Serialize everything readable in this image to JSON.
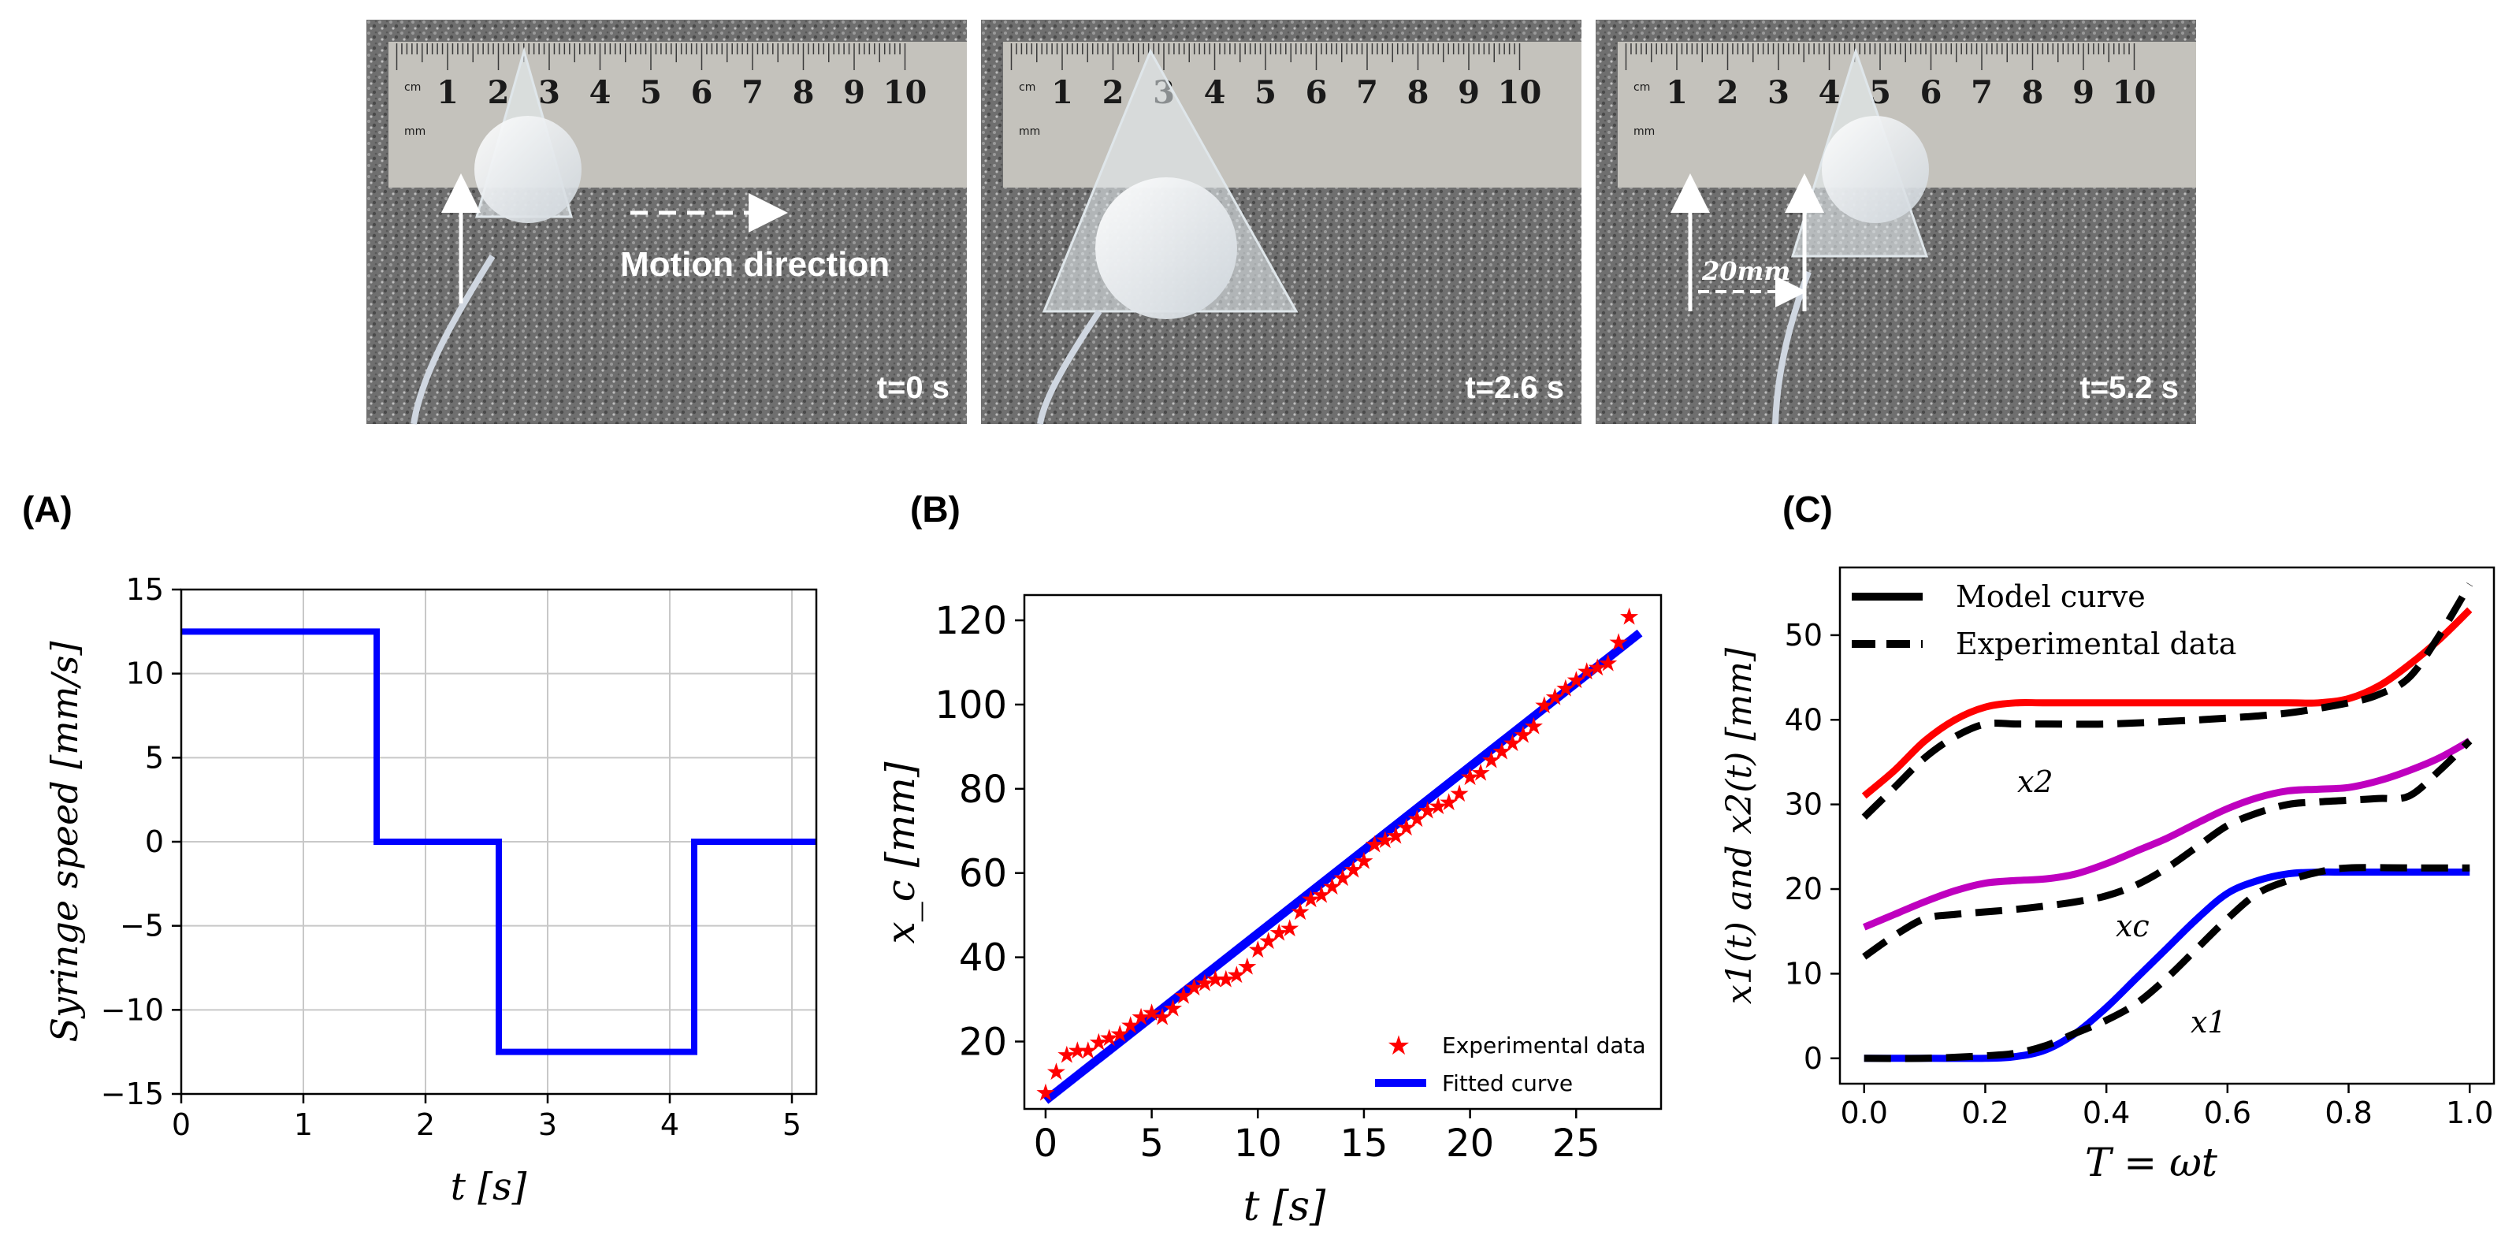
{
  "photos": [
    {
      "time_label": "t=0 s",
      "annotation": "Motion direction"
    },
    {
      "time_label": "t=2.6 s"
    },
    {
      "time_label": "t=5.2 s",
      "annotation": "20mm"
    }
  ],
  "ruler_numbers": [
    "1",
    "2",
    "3",
    "4",
    "5",
    "6",
    "7",
    "8",
    "9",
    "10"
  ],
  "ruler_unit": "cm",
  "ruler_unit2": "mm",
  "colors": {
    "blue": "#0000ff",
    "red": "#ff0000",
    "magenta": "#bf00bf",
    "black": "#000000"
  },
  "chart_data": [
    {
      "panel": "(A)",
      "type": "line",
      "title": "",
      "xlabel": "t [s]",
      "ylabel": "Syringe speed [mm/s]",
      "xlim": [
        0,
        5.2
      ],
      "ylim": [
        -15,
        15
      ],
      "xticks": [
        0,
        1,
        2,
        3,
        4,
        5
      ],
      "yticks": [
        -15,
        -10,
        -5,
        0,
        5,
        10,
        15
      ],
      "grid": true,
      "series": [
        {
          "name": "speed",
          "color": "#0000ff",
          "x": [
            0,
            1.6,
            1.6,
            2.6,
            2.6,
            4.2,
            4.2,
            5.2
          ],
          "y": [
            12.5,
            12.5,
            0,
            0,
            -12.5,
            -12.5,
            0,
            0
          ]
        }
      ]
    },
    {
      "panel": "(B)",
      "type": "scatter",
      "title": "",
      "xlabel": "t [s]",
      "ylabel": "x_c [mm]",
      "xlim": [
        -1,
        29
      ],
      "ylim": [
        4,
        126
      ],
      "xticks": [
        0,
        5,
        10,
        15,
        20,
        25
      ],
      "yticks": [
        20,
        40,
        60,
        80,
        100,
        120
      ],
      "grid": false,
      "legend": "bottom-right",
      "series": [
        {
          "name": "Experimental data",
          "color": "#ff0000",
          "marker": "star",
          "x": [
            0,
            0.5,
            1,
            1.5,
            2,
            2.5,
            3,
            3.5,
            4,
            4.5,
            5,
            5.5,
            6,
            6.5,
            7,
            7.5,
            8,
            8.5,
            9,
            9.5,
            10,
            10.5,
            11,
            11.5,
            12,
            12.5,
            13,
            13.5,
            14,
            14.5,
            15,
            15.5,
            16,
            16.5,
            17,
            17.5,
            18,
            18.5,
            19,
            19.5,
            20,
            20.5,
            21,
            21.5,
            22,
            22.5,
            23,
            23.5,
            24,
            24.5,
            25,
            25.5,
            26,
            26.5,
            27,
            27.5
          ],
          "y": [
            8,
            13,
            17,
            18,
            18,
            20,
            21,
            22,
            24,
            26,
            27,
            26,
            28,
            31,
            33,
            34,
            35,
            35,
            36,
            38,
            42,
            44,
            46,
            47,
            51,
            54,
            55,
            57,
            59,
            61,
            63,
            67,
            68,
            69,
            71,
            73,
            75,
            76,
            77,
            79,
            83,
            84,
            87,
            89,
            91,
            93,
            95,
            100,
            102,
            104,
            106,
            108,
            109,
            110,
            115,
            121
          ]
        },
        {
          "name": "Fitted curve",
          "color": "#0000ff",
          "marker": "line",
          "x": [
            0,
            28
          ],
          "y": [
            6,
            117
          ]
        }
      ]
    },
    {
      "panel": "(C)",
      "type": "line",
      "title": "",
      "xlabel": "T = ωt",
      "ylabel": "x1(t) and x2(t) [mm]",
      "xlim": [
        -0.04,
        1.04
      ],
      "ylim": [
        -3,
        58
      ],
      "xticks": [
        0.0,
        0.2,
        0.4,
        0.6,
        0.8,
        1.0
      ],
      "yticks": [
        0,
        10,
        20,
        30,
        40,
        50
      ],
      "grid": false,
      "legend": "top-left",
      "legend_entries": [
        "Model curve",
        "Experimental data"
      ],
      "curve_labels": [
        "x2",
        "xc",
        "x1"
      ],
      "series": [
        {
          "name": "x2 model",
          "color": "#ff0000",
          "style": "solid",
          "x": [
            0,
            0.05,
            0.1,
            0.15,
            0.2,
            0.25,
            0.3,
            0.4,
            0.5,
            0.6,
            0.7,
            0.75,
            0.8,
            0.85,
            0.9,
            0.95,
            1.0
          ],
          "y": [
            31,
            34,
            37.5,
            40,
            41.5,
            42,
            42,
            42,
            42,
            42,
            42,
            42,
            42.5,
            44,
            46.5,
            49.5,
            53
          ]
        },
        {
          "name": "x2 exp",
          "color": "#000000",
          "style": "dashed",
          "x": [
            0,
            0.05,
            0.1,
            0.15,
            0.2,
            0.25,
            0.3,
            0.4,
            0.5,
            0.6,
            0.7,
            0.8,
            0.85,
            0.9,
            0.95,
            1.0
          ],
          "y": [
            28.5,
            32,
            35.5,
            38,
            39.5,
            39.5,
            39.5,
            39.5,
            39.8,
            40.2,
            40.8,
            42,
            43,
            45,
            50,
            56
          ]
        },
        {
          "name": "xc model",
          "color": "#bf00bf",
          "style": "solid",
          "x": [
            0,
            0.05,
            0.1,
            0.15,
            0.2,
            0.25,
            0.3,
            0.35,
            0.4,
            0.45,
            0.5,
            0.55,
            0.6,
            0.65,
            0.7,
            0.75,
            0.8,
            0.85,
            0.9,
            0.95,
            1.0
          ],
          "y": [
            15.5,
            17,
            18.5,
            19.8,
            20.7,
            21,
            21.2,
            21.8,
            23,
            24.5,
            26,
            27.8,
            29.5,
            30.8,
            31.6,
            31.8,
            32,
            32.8,
            34,
            35.5,
            37.5
          ]
        },
        {
          "name": "xc exp",
          "color": "#000000",
          "style": "dashed",
          "x": [
            0,
            0.05,
            0.1,
            0.15,
            0.2,
            0.25,
            0.3,
            0.35,
            0.4,
            0.45,
            0.5,
            0.55,
            0.6,
            0.65,
            0.7,
            0.75,
            0.8,
            0.85,
            0.9,
            0.95,
            1.0
          ],
          "y": [
            12,
            14.5,
            16.5,
            17,
            17.3,
            17.6,
            18,
            18.5,
            19.2,
            20.5,
            22.5,
            25,
            27.5,
            29,
            30,
            30.3,
            30.5,
            30.7,
            31,
            34,
            37.5
          ]
        },
        {
          "name": "x1 model",
          "color": "#0000ff",
          "style": "solid",
          "x": [
            0,
            0.1,
            0.2,
            0.25,
            0.3,
            0.35,
            0.4,
            0.45,
            0.5,
            0.55,
            0.6,
            0.65,
            0.7,
            0.75,
            0.8,
            0.9,
            1.0
          ],
          "y": [
            0,
            0,
            0,
            0.2,
            1,
            3,
            6,
            9.5,
            13,
            16.5,
            19.5,
            21,
            21.8,
            22,
            22,
            22,
            22
          ]
        },
        {
          "name": "x1 exp",
          "color": "#000000",
          "style": "dashed",
          "x": [
            0,
            0.1,
            0.2,
            0.25,
            0.3,
            0.35,
            0.4,
            0.45,
            0.5,
            0.55,
            0.6,
            0.65,
            0.7,
            0.75,
            0.8,
            0.9,
            1.0
          ],
          "y": [
            0,
            0,
            0.3,
            0.6,
            1.5,
            3,
            4.5,
            6.5,
            9.5,
            13,
            16.5,
            19.5,
            21,
            22,
            22.5,
            22.5,
            22.5
          ]
        }
      ]
    }
  ]
}
